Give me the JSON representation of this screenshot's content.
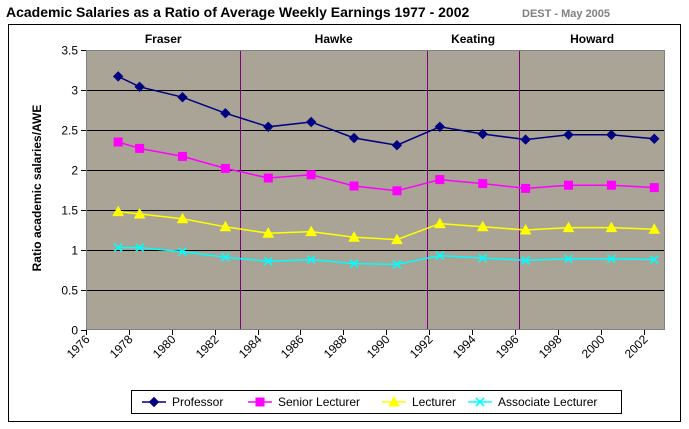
{
  "chart_data": {
    "type": "line",
    "title": "Academic Salaries as a Ratio of Average Weekly Earnings 1977 - 2002",
    "source_note": "DEST - May 2005",
    "xlabel": "",
    "ylabel": "Ratio academic salaries/AWE",
    "xlim": [
      1976,
      2003
    ],
    "ylim": [
      0,
      3.5
    ],
    "x_ticks": [
      1976,
      1978,
      1980,
      1982,
      1984,
      1986,
      1988,
      1990,
      1992,
      1994,
      1996,
      1998,
      2000,
      2002
    ],
    "x_tick_labels": [
      "1976",
      "1978",
      "1980",
      "1982",
      "1984",
      "1986",
      "1988",
      "1990",
      "1992",
      "1994",
      "1996",
      "1998",
      "2000",
      "2002"
    ],
    "y_ticks": [
      0,
      0.5,
      1,
      1.5,
      2,
      2.5,
      3,
      3.5
    ],
    "y_tick_labels": [
      "0",
      "0.5",
      "1",
      "1.5",
      "2",
      "2.5",
      "3",
      "3.5"
    ],
    "grid": "horizontal",
    "plot_background": "#a9a496",
    "legend_position": "bottom",
    "eras": [
      {
        "name": "Fraser",
        "start": 1976,
        "end": 1983.2
      },
      {
        "name": "Hawke",
        "start": 1983.2,
        "end": 1991.9
      },
      {
        "name": "Keating",
        "start": 1991.9,
        "end": 1996.2
      },
      {
        "name": "Howard",
        "start": 1996.2,
        "end": 2003
      }
    ],
    "era_divider_color": "#800080",
    "x": [
      1977.5,
      1978.5,
      1980.5,
      1982.5,
      1984.5,
      1986.5,
      1988.5,
      1990.5,
      1992.5,
      1994.5,
      1996.5,
      1998.5,
      2000.5,
      2002.5
    ],
    "series": [
      {
        "name": "Professor",
        "color": "#000080",
        "marker": "diamond",
        "values": [
          3.17,
          3.04,
          2.91,
          2.71,
          2.54,
          2.6,
          2.4,
          2.31,
          2.54,
          2.45,
          2.38,
          2.44,
          2.44,
          2.39
        ]
      },
      {
        "name": "Senior Lecturer",
        "color": "#ff00ff",
        "marker": "square",
        "values": [
          2.35,
          2.27,
          2.17,
          2.02,
          1.9,
          1.94,
          1.8,
          1.74,
          1.88,
          1.83,
          1.77,
          1.81,
          1.81,
          1.78
        ]
      },
      {
        "name": "Lecturer",
        "color": "#ffff00",
        "marker": "triangle",
        "values": [
          1.48,
          1.45,
          1.39,
          1.29,
          1.21,
          1.23,
          1.16,
          1.13,
          1.33,
          1.29,
          1.25,
          1.28,
          1.28,
          1.26
        ]
      },
      {
        "name": "Associate Lecturer",
        "color": "#00ffff",
        "marker": "x",
        "values": [
          1.03,
          1.03,
          0.98,
          0.91,
          0.86,
          0.88,
          0.83,
          0.82,
          0.93,
          0.9,
          0.87,
          0.89,
          0.89,
          0.88
        ]
      }
    ]
  }
}
